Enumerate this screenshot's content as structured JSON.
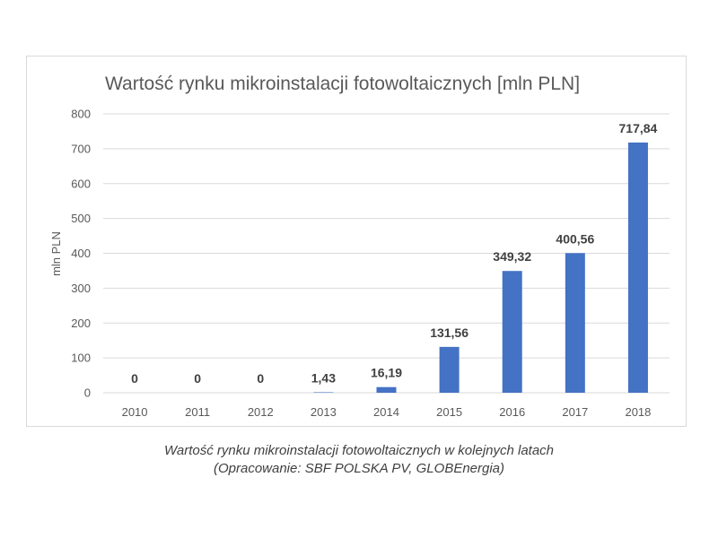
{
  "chart_data": {
    "type": "bar",
    "title": "Wartość rynku mikroinstalacji fotowoltaicznych [mln PLN]",
    "xlabel": "",
    "ylabel": "mln PLN",
    "categories": [
      "2010",
      "2011",
      "2012",
      "2013",
      "2014",
      "2015",
      "2016",
      "2017",
      "2018"
    ],
    "values": [
      0,
      0,
      0,
      1.43,
      16.19,
      131.56,
      349.32,
      400.56,
      717.84
    ],
    "data_labels": [
      "0",
      "0",
      "0",
      "1,43",
      "16,19",
      "131,56",
      "349,32",
      "400,56",
      "717,84"
    ],
    "ylim": [
      0,
      800
    ],
    "yticks": [
      "0",
      "100",
      "200",
      "300",
      "400",
      "500",
      "600",
      "700",
      "800"
    ],
    "grid": true,
    "legend": "none",
    "bar_color": "#4472c4"
  },
  "caption": {
    "line1": "Wartość rynku mikroinstalacji fotowoltaicznych w kolejnych latach",
    "line2": "(Opracowanie: SBF POLSKA PV, GLOBEnergia)"
  }
}
